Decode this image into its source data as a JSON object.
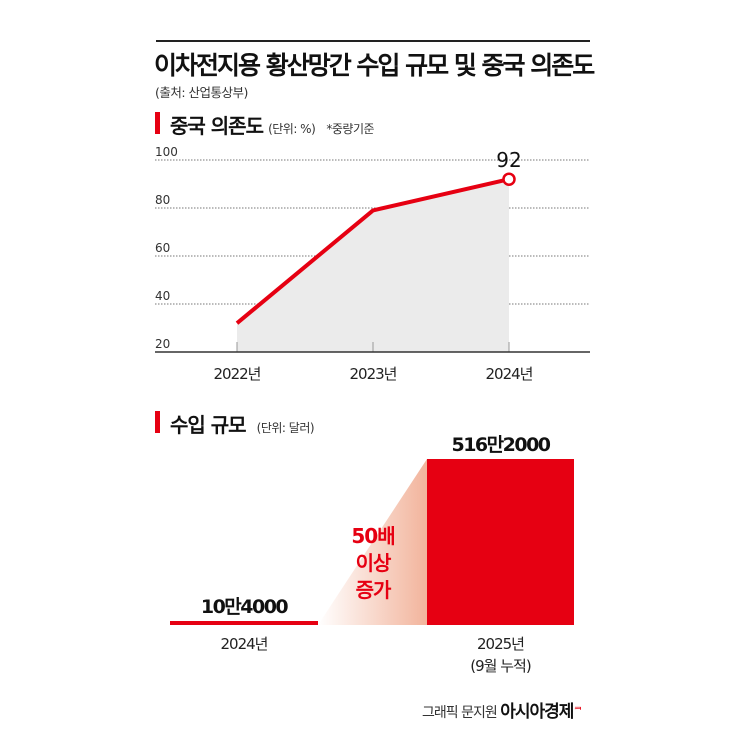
{
  "header": {
    "title": "이차전지용 황산망간 수입 규모 및 중국 의존도",
    "source": "(출처: 산업통상부)"
  },
  "sections": {
    "dependence": {
      "title": "중국 의존도",
      "unit": "(단위: %)",
      "note": "*중량기준"
    },
    "imports": {
      "title": "수입 규모",
      "unit": "(단위: 달러)",
      "annotation": [
        "50배",
        "이상",
        "증가"
      ]
    }
  },
  "chart_data": [
    {
      "type": "area",
      "title": "중국 의존도",
      "categories": [
        "2022년",
        "2023년",
        "2024년"
      ],
      "values": [
        32,
        79,
        92
      ],
      "data_labels": [
        "",
        "",
        "92"
      ],
      "ylim": [
        20,
        100
      ],
      "yticks": [
        "20",
        "40",
        "60",
        "80",
        "100"
      ],
      "grid": true,
      "colors": {
        "line": "#e60012",
        "fill": "#ebebeb"
      }
    },
    {
      "type": "bar",
      "title": "수입 규모",
      "categories": [
        "2024년",
        "2025년\n(9월 누적)"
      ],
      "category_lines": [
        [
          "2024년"
        ],
        [
          "2025년",
          "(9월 누적)"
        ]
      ],
      "values": [
        104000,
        5162000
      ],
      "data_labels": [
        "10만4000",
        "516만2000"
      ],
      "colors": {
        "bar": "#e60012",
        "gradient": "#f2b49c"
      }
    }
  ],
  "footer": {
    "credit": "그래픽 문지원",
    "brand": "아시아경제"
  }
}
